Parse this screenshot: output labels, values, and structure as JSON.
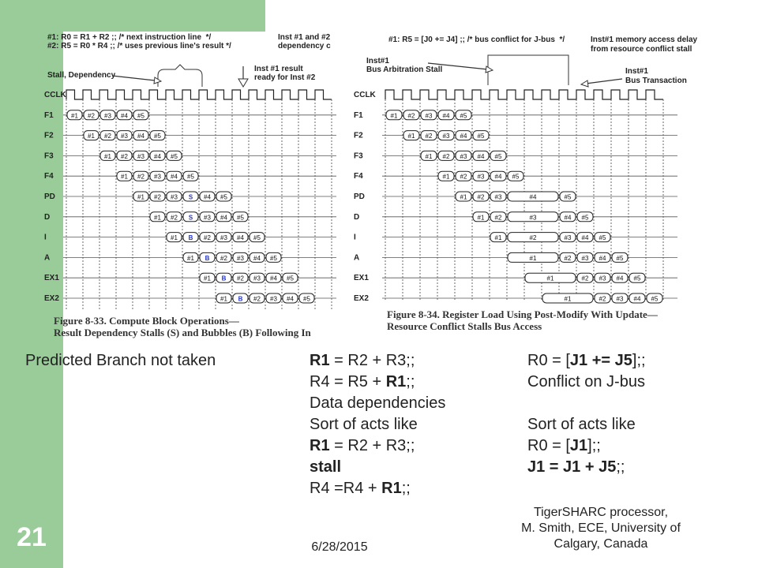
{
  "slide_number": "21",
  "fig1": {
    "header_left_1": "#1: R0 = R1 + R2 ;; /* next instruction line  */",
    "header_left_2": "#2: R5 = R0 * R4 ;; /* uses previous line's result */",
    "header_right_1": "Inst #1 and #2",
    "header_right_2": "dependency c",
    "annot_stall": "Stall, Dependency",
    "annot_result_1": "Inst #1 result",
    "annot_result_2": "ready for Inst #2",
    "caption_1": "Figure 8-33. Compute Block Operations—",
    "caption_2": "Result Dependency Stalls (S) and Bubbles (B) Following In",
    "rows": [
      {
        "label": "CCLK",
        "cells": []
      },
      {
        "label": "F1",
        "cells": [
          [
            "#1",
            0
          ],
          [
            "#2",
            1
          ],
          [
            "#3",
            2
          ],
          [
            "#4",
            3
          ],
          [
            "#5",
            4
          ]
        ]
      },
      {
        "label": "F2",
        "cells": [
          [
            "#1",
            1
          ],
          [
            "#2",
            2
          ],
          [
            "#3",
            3
          ],
          [
            "#4",
            4
          ],
          [
            "#5",
            5
          ]
        ]
      },
      {
        "label": "F3",
        "cells": [
          [
            "#1",
            2
          ],
          [
            "#2",
            3
          ],
          [
            "#3",
            4
          ],
          [
            "#4",
            5
          ],
          [
            "#5",
            6
          ]
        ]
      },
      {
        "label": "F4",
        "cells": [
          [
            "#1",
            3
          ],
          [
            "#2",
            4
          ],
          [
            "#3",
            5
          ],
          [
            "#4",
            6
          ],
          [
            "#5",
            7
          ]
        ]
      },
      {
        "label": "PD",
        "cells": [
          [
            "#1",
            4
          ],
          [
            "#2",
            5
          ],
          [
            "#3",
            6
          ],
          [
            "S",
            7
          ],
          [
            "#4",
            8
          ],
          [
            "#5",
            9
          ]
        ]
      },
      {
        "label": "D",
        "cells": [
          [
            "#1",
            5
          ],
          [
            "#2",
            6
          ],
          [
            "S",
            7
          ],
          [
            "#3",
            8
          ],
          [
            "#4",
            9
          ],
          [
            "#5",
            10
          ]
        ]
      },
      {
        "label": "I",
        "cells": [
          [
            "#1",
            6
          ],
          [
            "B",
            7
          ],
          [
            "#2",
            8
          ],
          [
            "#3",
            9
          ],
          [
            "#4",
            10
          ],
          [
            "#5",
            11
          ]
        ]
      },
      {
        "label": "A",
        "cells": [
          [
            "#1",
            7
          ],
          [
            "B",
            8
          ],
          [
            "#2",
            9
          ],
          [
            "#3",
            10
          ],
          [
            "#4",
            11
          ],
          [
            "#5",
            12
          ]
        ]
      },
      {
        "label": "EX1",
        "cells": [
          [
            "#1",
            8
          ],
          [
            "B",
            9
          ],
          [
            "#2",
            10
          ],
          [
            "#3",
            11
          ],
          [
            "#4",
            12
          ],
          [
            "#5",
            13
          ]
        ]
      },
      {
        "label": "EX2",
        "cells": [
          [
            "#1",
            9
          ],
          [
            "B",
            10
          ],
          [
            "#2",
            11
          ],
          [
            "#3",
            12
          ],
          [
            "#4",
            13
          ],
          [
            "#5",
            14
          ]
        ]
      }
    ]
  },
  "fig2": {
    "header_1": "#1: R5 = [J0 += J4] ;; /* bus conflict for J-bus  */",
    "header_right_1": "Inst#1 memory access delay",
    "header_right_2": "from resource conflict stall",
    "annot_left_1": "Inst#1",
    "annot_left_2": "Bus Arbitration Stall",
    "annot_right_1": "Inst#1",
    "annot_right_2": "Bus Transaction",
    "caption_1": "Figure 8-34. Register Load Using Post-Modify With Update—",
    "caption_2": "Resource Conflict Stalls Bus Access",
    "rows": [
      {
        "label": "CCLK",
        "cells": []
      },
      {
        "label": "F1",
        "cells": [
          [
            "#1",
            0,
            1
          ],
          [
            "#2",
            1,
            1
          ],
          [
            "#3",
            2,
            1
          ],
          [
            "#4",
            3,
            1
          ],
          [
            "#5",
            4,
            1
          ]
        ]
      },
      {
        "label": "F2",
        "cells": [
          [
            "#1",
            1,
            1
          ],
          [
            "#2",
            2,
            1
          ],
          [
            "#3",
            3,
            1
          ],
          [
            "#4",
            4,
            1
          ],
          [
            "#5",
            5,
            1
          ]
        ]
      },
      {
        "label": "F3",
        "cells": [
          [
            "#1",
            2,
            1
          ],
          [
            "#2",
            3,
            1
          ],
          [
            "#3",
            4,
            1
          ],
          [
            "#4",
            5,
            1
          ],
          [
            "#5",
            6,
            1
          ]
        ]
      },
      {
        "label": "F4",
        "cells": [
          [
            "#1",
            3,
            1
          ],
          [
            "#2",
            4,
            1
          ],
          [
            "#3",
            5,
            1
          ],
          [
            "#4",
            6,
            1
          ],
          [
            "#5",
            7,
            1
          ]
        ]
      },
      {
        "label": "PD",
        "cells": [
          [
            "#1",
            4,
            1
          ],
          [
            "#2",
            5,
            1
          ],
          [
            "#3",
            6,
            1
          ],
          [
            "#4",
            7,
            3
          ],
          [
            "#5",
            10,
            1
          ]
        ]
      },
      {
        "label": "D",
        "cells": [
          [
            "#1",
            5,
            1
          ],
          [
            "#2",
            6,
            1
          ],
          [
            "#3",
            7,
            3
          ],
          [
            "#4",
            10,
            1
          ],
          [
            "#5",
            11,
            1
          ]
        ]
      },
      {
        "label": "I",
        "cells": [
          [
            "#1",
            6,
            1
          ],
          [
            "#2",
            7,
            3
          ],
          [
            "#3",
            10,
            1
          ],
          [
            "#4",
            11,
            1
          ],
          [
            "#5",
            12,
            1
          ]
        ]
      },
      {
        "label": "A",
        "cells": [
          [
            "#1",
            7,
            3
          ],
          [
            "#2",
            10,
            1
          ],
          [
            "#3",
            11,
            1
          ],
          [
            "#4",
            12,
            1
          ],
          [
            "#5",
            13,
            1
          ]
        ]
      },
      {
        "label": "EX1",
        "cells": [
          [
            "#1",
            8,
            3
          ],
          [
            "#2",
            11,
            1
          ],
          [
            "#3",
            12,
            1
          ],
          [
            "#4",
            13,
            1
          ],
          [
            "#5",
            14,
            1
          ]
        ]
      },
      {
        "label": "EX2",
        "cells": [
          [
            "#1",
            9,
            3
          ],
          [
            "#2",
            12,
            1
          ],
          [
            "#3",
            13,
            1
          ],
          [
            "#4",
            14,
            1
          ],
          [
            "#5",
            15,
            1
          ]
        ]
      }
    ]
  },
  "body": {
    "predicted": "Predicted Branch not taken",
    "col1": [
      [
        [
          "R1",
          true
        ],
        [
          " = R2 + R3;;",
          false
        ]
      ],
      [
        [
          "R4 = R5 + ",
          false
        ],
        [
          "R1",
          true
        ],
        [
          ";;",
          false
        ]
      ],
      [
        [
          "Data dependencies",
          false
        ]
      ],
      [
        [
          "Sort of acts like",
          false
        ]
      ],
      [
        [
          "R1",
          true
        ],
        [
          " = R2 + R3;;",
          false
        ]
      ],
      [
        [
          "stall",
          true
        ]
      ],
      [
        [
          "R4 =R4 + ",
          false
        ],
        [
          "R1",
          true
        ],
        [
          ";;",
          false
        ]
      ]
    ],
    "col2": [
      [
        [
          "R0 = [",
          false
        ],
        [
          "J1 += J5",
          true
        ],
        [
          "];;",
          false
        ]
      ],
      [
        [
          "Conflict on J-bus",
          false
        ]
      ],
      [
        [
          "",
          false
        ]
      ],
      [
        [
          "Sort of acts like",
          false
        ]
      ],
      [
        [
          "R0 = [",
          false
        ],
        [
          "J1",
          true
        ],
        [
          "];;",
          false
        ]
      ],
      [
        [
          "J1 = J1 + J5",
          true
        ],
        [
          ";;",
          false
        ]
      ]
    ]
  },
  "footer": {
    "date": "6/28/2015",
    "credit_1": "TigerSHARC processor,",
    "credit_2": "M. Smith, ECE, University of",
    "credit_3": "Calgary, Canada"
  }
}
